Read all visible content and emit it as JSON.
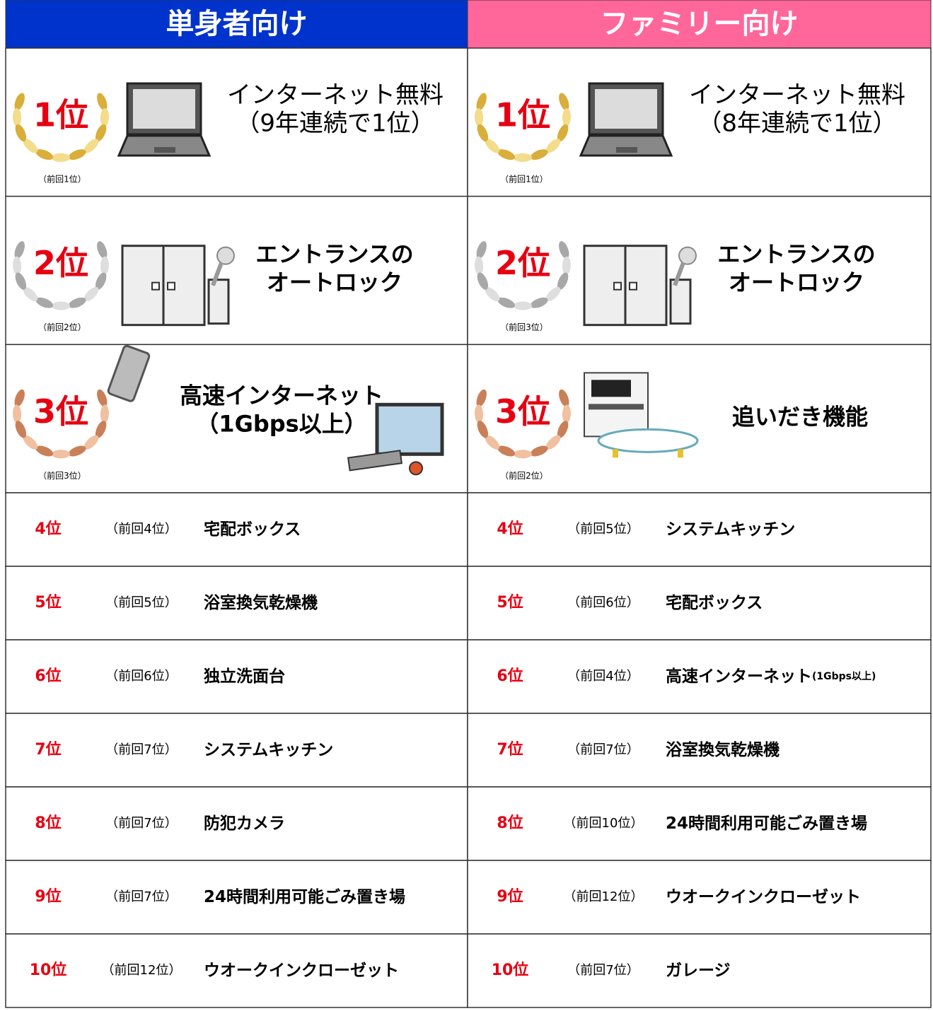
{
  "columns": [
    {
      "title": "単身者向け",
      "top": [
        {
          "rank": "1位",
          "previous": "（前回1位）",
          "label": [
            "インターネット無料",
            "（9年連続で1位）"
          ]
        },
        {
          "rank": "2位",
          "previous": "（前回2位）",
          "label": [
            "エントランスの",
            "オートロック"
          ]
        },
        {
          "rank": "3位",
          "previous": "（前回3位）",
          "label": [
            "高速インターネット",
            "（1Gbps以上）"
          ]
        }
      ],
      "rows": [
        {
          "rank": "4位",
          "previous": "（前回4位）",
          "label": "宅配ボックス"
        },
        {
          "rank": "5位",
          "previous": "（前回5位）",
          "label": "浴室換気乾燥機"
        },
        {
          "rank": "6位",
          "previous": "（前回6位）",
          "label": "独立洗面台"
        },
        {
          "rank": "7位",
          "previous": "（前回7位）",
          "label": "システムキッチン"
        },
        {
          "rank": "8位",
          "previous": "（前回7位）",
          "label": "防犯カメラ"
        },
        {
          "rank": "9位",
          "previous": "（前回7位）",
          "label": "24時間利用可能ごみ置き場"
        },
        {
          "rank": "10位",
          "previous": "（前回12位）",
          "label": "ウオークインクローゼット"
        }
      ]
    },
    {
      "title": "ファミリー向け",
      "top": [
        {
          "rank": "1位",
          "previous": "（前回1位）",
          "label": [
            "インターネット無料",
            "（8年連続で1位）"
          ]
        },
        {
          "rank": "2位",
          "previous": "（前回3位）",
          "label": [
            "エントランスの",
            "オートロック"
          ]
        },
        {
          "rank": "3位",
          "previous": "（前回2位）",
          "label": [
            "追いだき機能"
          ]
        }
      ],
      "rows": [
        {
          "rank": "4位",
          "previous": "（前回5位）",
          "label": "システムキッチン"
        },
        {
          "rank": "5位",
          "previous": "（前回6位）",
          "label": "宅配ボックス"
        },
        {
          "rank": "6位",
          "previous": "（前回4位）",
          "label": "高速インターネット",
          "label_note": "(1Gbps以上)"
        },
        {
          "rank": "7位",
          "previous": "（前回7位）",
          "label": "浴室換気乾燥機"
        },
        {
          "rank": "8位",
          "previous": "（前回10位）",
          "label": "24時間利用可能ごみ置き場"
        },
        {
          "rank": "9位",
          "previous": "（前回12位）",
          "label": "ウオークインクローゼット"
        },
        {
          "rank": "10位",
          "previous": "（前回7位）",
          "label": "ガレージ"
        }
      ]
    }
  ]
}
